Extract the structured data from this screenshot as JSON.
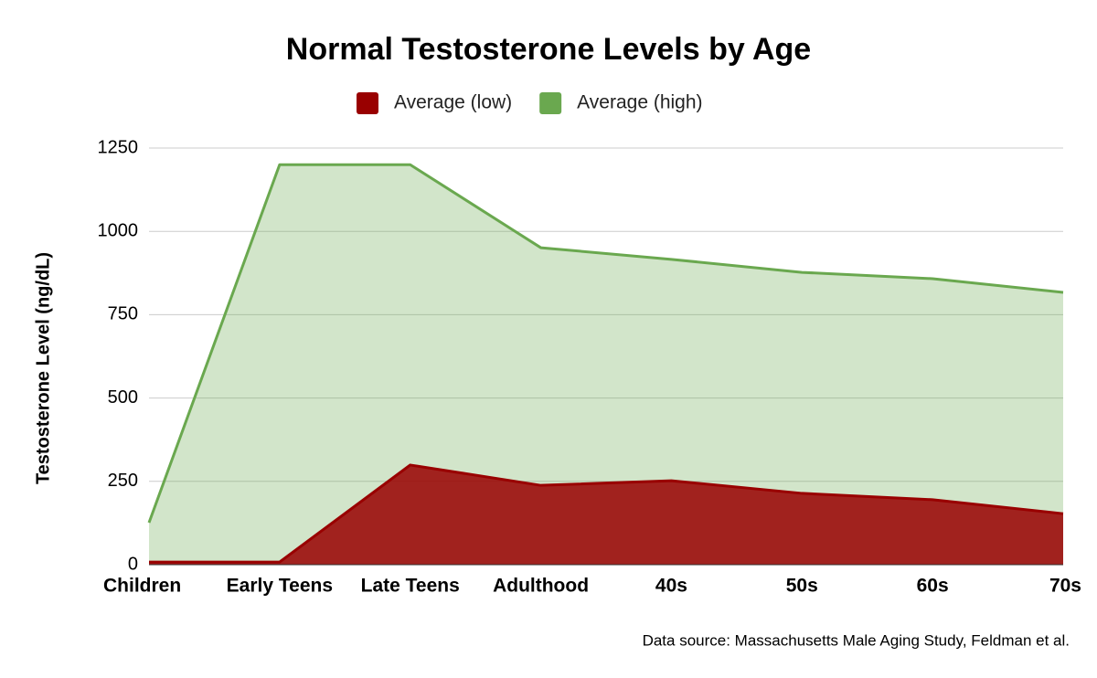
{
  "chart_data": {
    "type": "area",
    "title": "Normal Testosterone Levels by Age",
    "y_label": "Testosterone Level (ng/dL)",
    "source": "Data source: Massachusetts Male Aging Study, Feldman et al.",
    "categories": [
      "Children",
      "Early Teens",
      "Late Teens",
      "Adulthood",
      "40s",
      "50s",
      "60s",
      "70s"
    ],
    "series": [
      {
        "name": "Average (high)",
        "color": "#6aa84f",
        "values": [
          126,
          1200,
          1200,
          951,
          916,
          877,
          858,
          817
        ]
      },
      {
        "name": "Average (low)",
        "color": "#990000",
        "values": [
          8,
          8,
          299,
          238,
          252,
          214,
          195,
          153
        ]
      }
    ],
    "legend_order": [
      1,
      0
    ],
    "ylim": [
      0,
      1250
    ],
    "yticks": [
      0,
      250,
      500,
      750,
      1000,
      1250
    ],
    "grid": true
  }
}
